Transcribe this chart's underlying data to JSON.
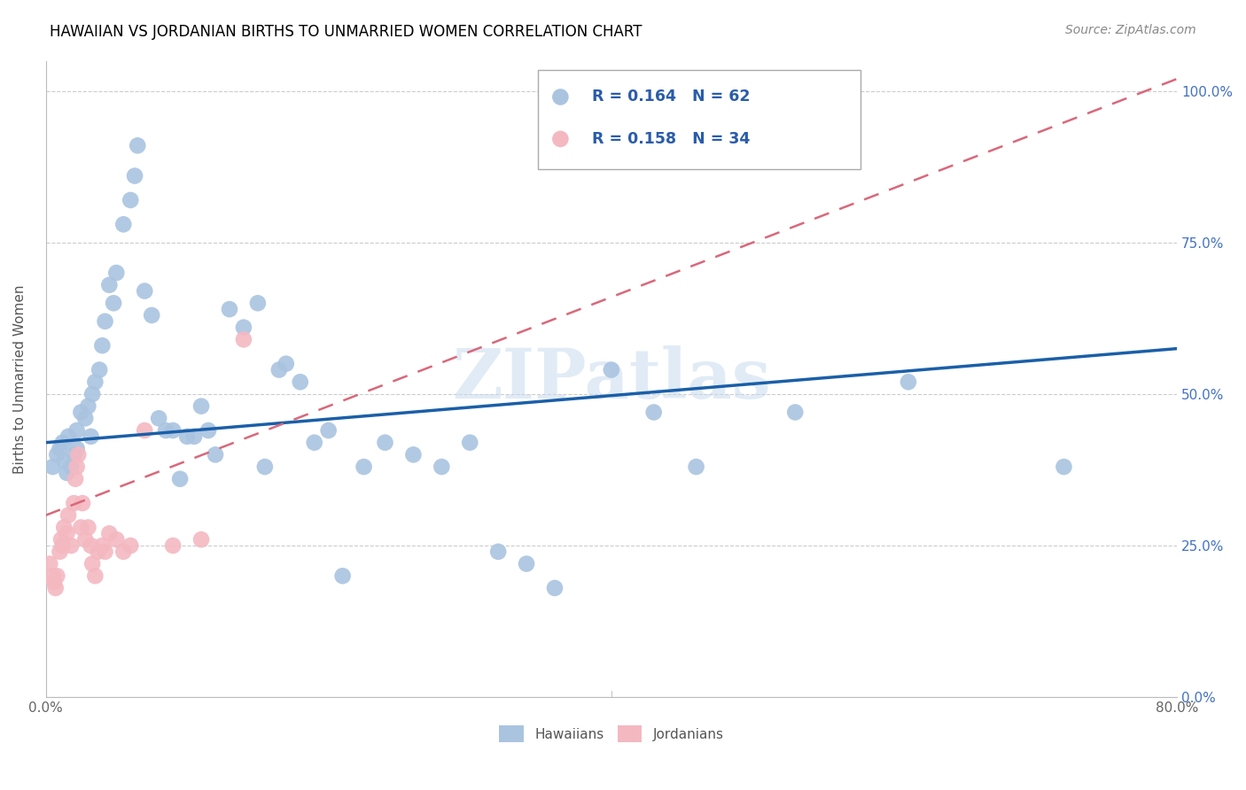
{
  "title": "HAWAIIAN VS JORDANIAN BIRTHS TO UNMARRIED WOMEN CORRELATION CHART",
  "source": "Source: ZipAtlas.com",
  "ylabel": "Births to Unmarried Women",
  "yticks": [
    "0.0%",
    "25.0%",
    "50.0%",
    "75.0%",
    "100.0%"
  ],
  "ytick_vals": [
    0.0,
    0.25,
    0.5,
    0.75,
    1.0
  ],
  "xlim": [
    0.0,
    0.8
  ],
  "ylim": [
    0.0,
    1.05
  ],
  "hawaiian_color": "#aac4e0",
  "jordanian_color": "#f4b8c1",
  "hawaiian_line_color": "#1a5fa8",
  "jordanian_line_color": "#d9687a",
  "legend_R_hawaii": "R = 0.164",
  "legend_N_hawaii": "N = 62",
  "legend_R_jordan": "R = 0.158",
  "legend_N_jordan": "N = 34",
  "legend_text_color": "#2a5caa",
  "watermark": "ZIPatlas",
  "hawaiian_line": [
    0.0,
    0.42,
    0.8,
    0.575
  ],
  "jordanian_line": [
    0.0,
    0.3,
    0.8,
    1.02
  ],
  "hawaiian_x": [
    0.005,
    0.008,
    0.01,
    0.012,
    0.013,
    0.015,
    0.016,
    0.018,
    0.02,
    0.022,
    0.022,
    0.025,
    0.028,
    0.03,
    0.032,
    0.033,
    0.035,
    0.038,
    0.04,
    0.042,
    0.045,
    0.048,
    0.05,
    0.055,
    0.06,
    0.063,
    0.065,
    0.07,
    0.075,
    0.08,
    0.085,
    0.09,
    0.095,
    0.1,
    0.105,
    0.11,
    0.115,
    0.12,
    0.13,
    0.14,
    0.15,
    0.155,
    0.165,
    0.17,
    0.18,
    0.19,
    0.2,
    0.21,
    0.225,
    0.24,
    0.26,
    0.28,
    0.3,
    0.32,
    0.34,
    0.36,
    0.4,
    0.43,
    0.46,
    0.53,
    0.61,
    0.72
  ],
  "hawaiian_y": [
    0.38,
    0.4,
    0.41,
    0.42,
    0.39,
    0.37,
    0.43,
    0.38,
    0.4,
    0.44,
    0.41,
    0.47,
    0.46,
    0.48,
    0.43,
    0.5,
    0.52,
    0.54,
    0.58,
    0.62,
    0.68,
    0.65,
    0.7,
    0.78,
    0.82,
    0.86,
    0.91,
    0.67,
    0.63,
    0.46,
    0.44,
    0.44,
    0.36,
    0.43,
    0.43,
    0.48,
    0.44,
    0.4,
    0.64,
    0.61,
    0.65,
    0.38,
    0.54,
    0.55,
    0.52,
    0.42,
    0.44,
    0.2,
    0.38,
    0.42,
    0.4,
    0.38,
    0.42,
    0.24,
    0.22,
    0.18,
    0.54,
    0.47,
    0.38,
    0.47,
    0.52,
    0.38
  ],
  "jordanian_x": [
    0.003,
    0.005,
    0.006,
    0.007,
    0.008,
    0.01,
    0.011,
    0.012,
    0.013,
    0.015,
    0.016,
    0.018,
    0.02,
    0.021,
    0.022,
    0.023,
    0.025,
    0.026,
    0.028,
    0.03,
    0.032,
    0.033,
    0.035,
    0.037,
    0.04,
    0.042,
    0.045,
    0.05,
    0.055,
    0.06,
    0.07,
    0.09,
    0.11,
    0.14
  ],
  "jordanian_y": [
    0.22,
    0.2,
    0.19,
    0.18,
    0.2,
    0.24,
    0.26,
    0.25,
    0.28,
    0.27,
    0.3,
    0.25,
    0.32,
    0.36,
    0.38,
    0.4,
    0.28,
    0.32,
    0.26,
    0.28,
    0.25,
    0.22,
    0.2,
    0.24,
    0.25,
    0.24,
    0.27,
    0.26,
    0.24,
    0.25,
    0.44,
    0.25,
    0.26,
    0.59
  ]
}
